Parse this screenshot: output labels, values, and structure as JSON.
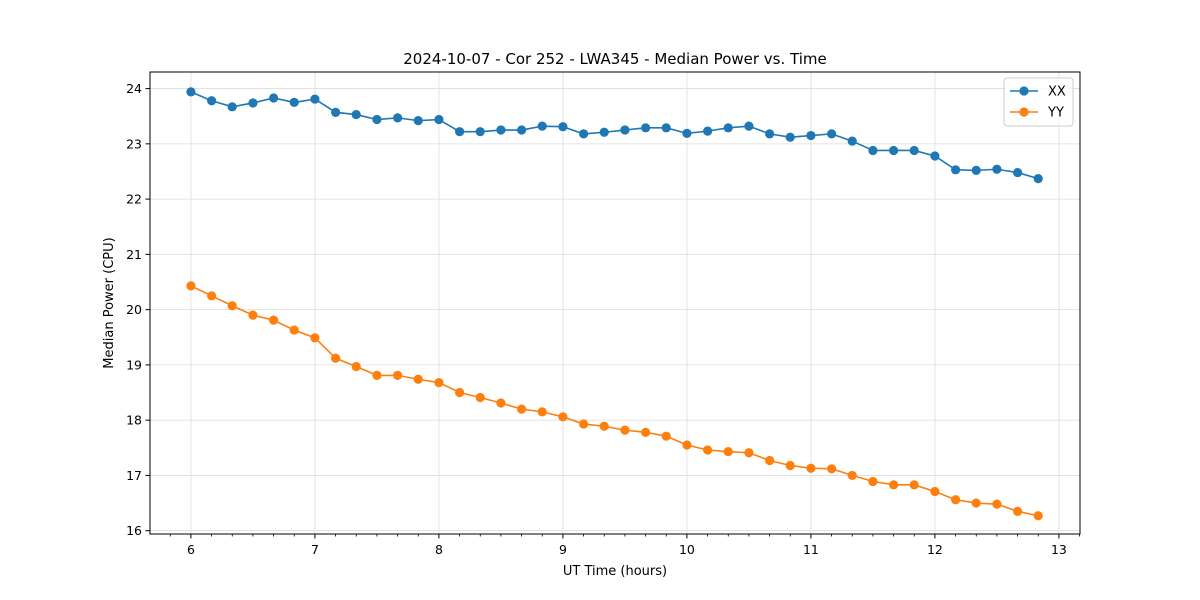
{
  "chart_data": {
    "type": "line",
    "title": "2024-10-07 - Cor 252 - LWA345 - Median Power vs. Time",
    "xlabel": "UT Time (hours)",
    "ylabel": "Median Power (CPU)",
    "xlim": [
      5.67,
      13.17
    ],
    "ylim": [
      15.94,
      24.3
    ],
    "xticks": [
      6,
      7,
      8,
      9,
      10,
      11,
      12,
      13
    ],
    "yticks": [
      16,
      17,
      18,
      19,
      20,
      21,
      22,
      23,
      24
    ],
    "grid": true,
    "legend_position": "top-right",
    "x": [
      6.0,
      6.167,
      6.333,
      6.5,
      6.667,
      6.833,
      7.0,
      7.167,
      7.333,
      7.5,
      7.667,
      7.833,
      8.0,
      8.167,
      8.333,
      8.5,
      8.667,
      8.833,
      9.0,
      9.167,
      9.333,
      9.5,
      9.667,
      9.833,
      10.0,
      10.167,
      10.333,
      10.5,
      10.667,
      10.833,
      11.0,
      11.167,
      11.333,
      11.5,
      11.667,
      11.833,
      12.0,
      12.167,
      12.333,
      12.5,
      12.667,
      12.833
    ],
    "series": [
      {
        "name": "XX",
        "color": "#1f77b4",
        "values": [
          23.94,
          23.78,
          23.67,
          23.74,
          23.83,
          23.75,
          23.81,
          23.57,
          23.53,
          23.44,
          23.47,
          23.42,
          23.44,
          23.22,
          23.22,
          23.25,
          23.25,
          23.32,
          23.31,
          23.18,
          23.21,
          23.25,
          23.29,
          23.29,
          23.19,
          23.23,
          23.29,
          23.32,
          23.18,
          23.12,
          23.15,
          23.18,
          23.05,
          22.88,
          22.88,
          22.88,
          22.78,
          22.53,
          22.52,
          22.54,
          22.48,
          22.37
        ]
      },
      {
        "name": "YY",
        "color": "#ff7f0e",
        "values": [
          20.43,
          20.25,
          20.07,
          19.9,
          19.81,
          19.63,
          19.49,
          19.12,
          18.97,
          18.81,
          18.81,
          18.74,
          18.68,
          18.5,
          18.41,
          18.31,
          18.2,
          18.15,
          18.06,
          17.93,
          17.89,
          17.82,
          17.78,
          17.71,
          17.55,
          17.46,
          17.43,
          17.41,
          17.27,
          17.18,
          17.13,
          17.12,
          17.0,
          16.89,
          16.83,
          16.83,
          16.71,
          16.56,
          16.5,
          16.48,
          16.35,
          16.27
        ]
      }
    ]
  }
}
